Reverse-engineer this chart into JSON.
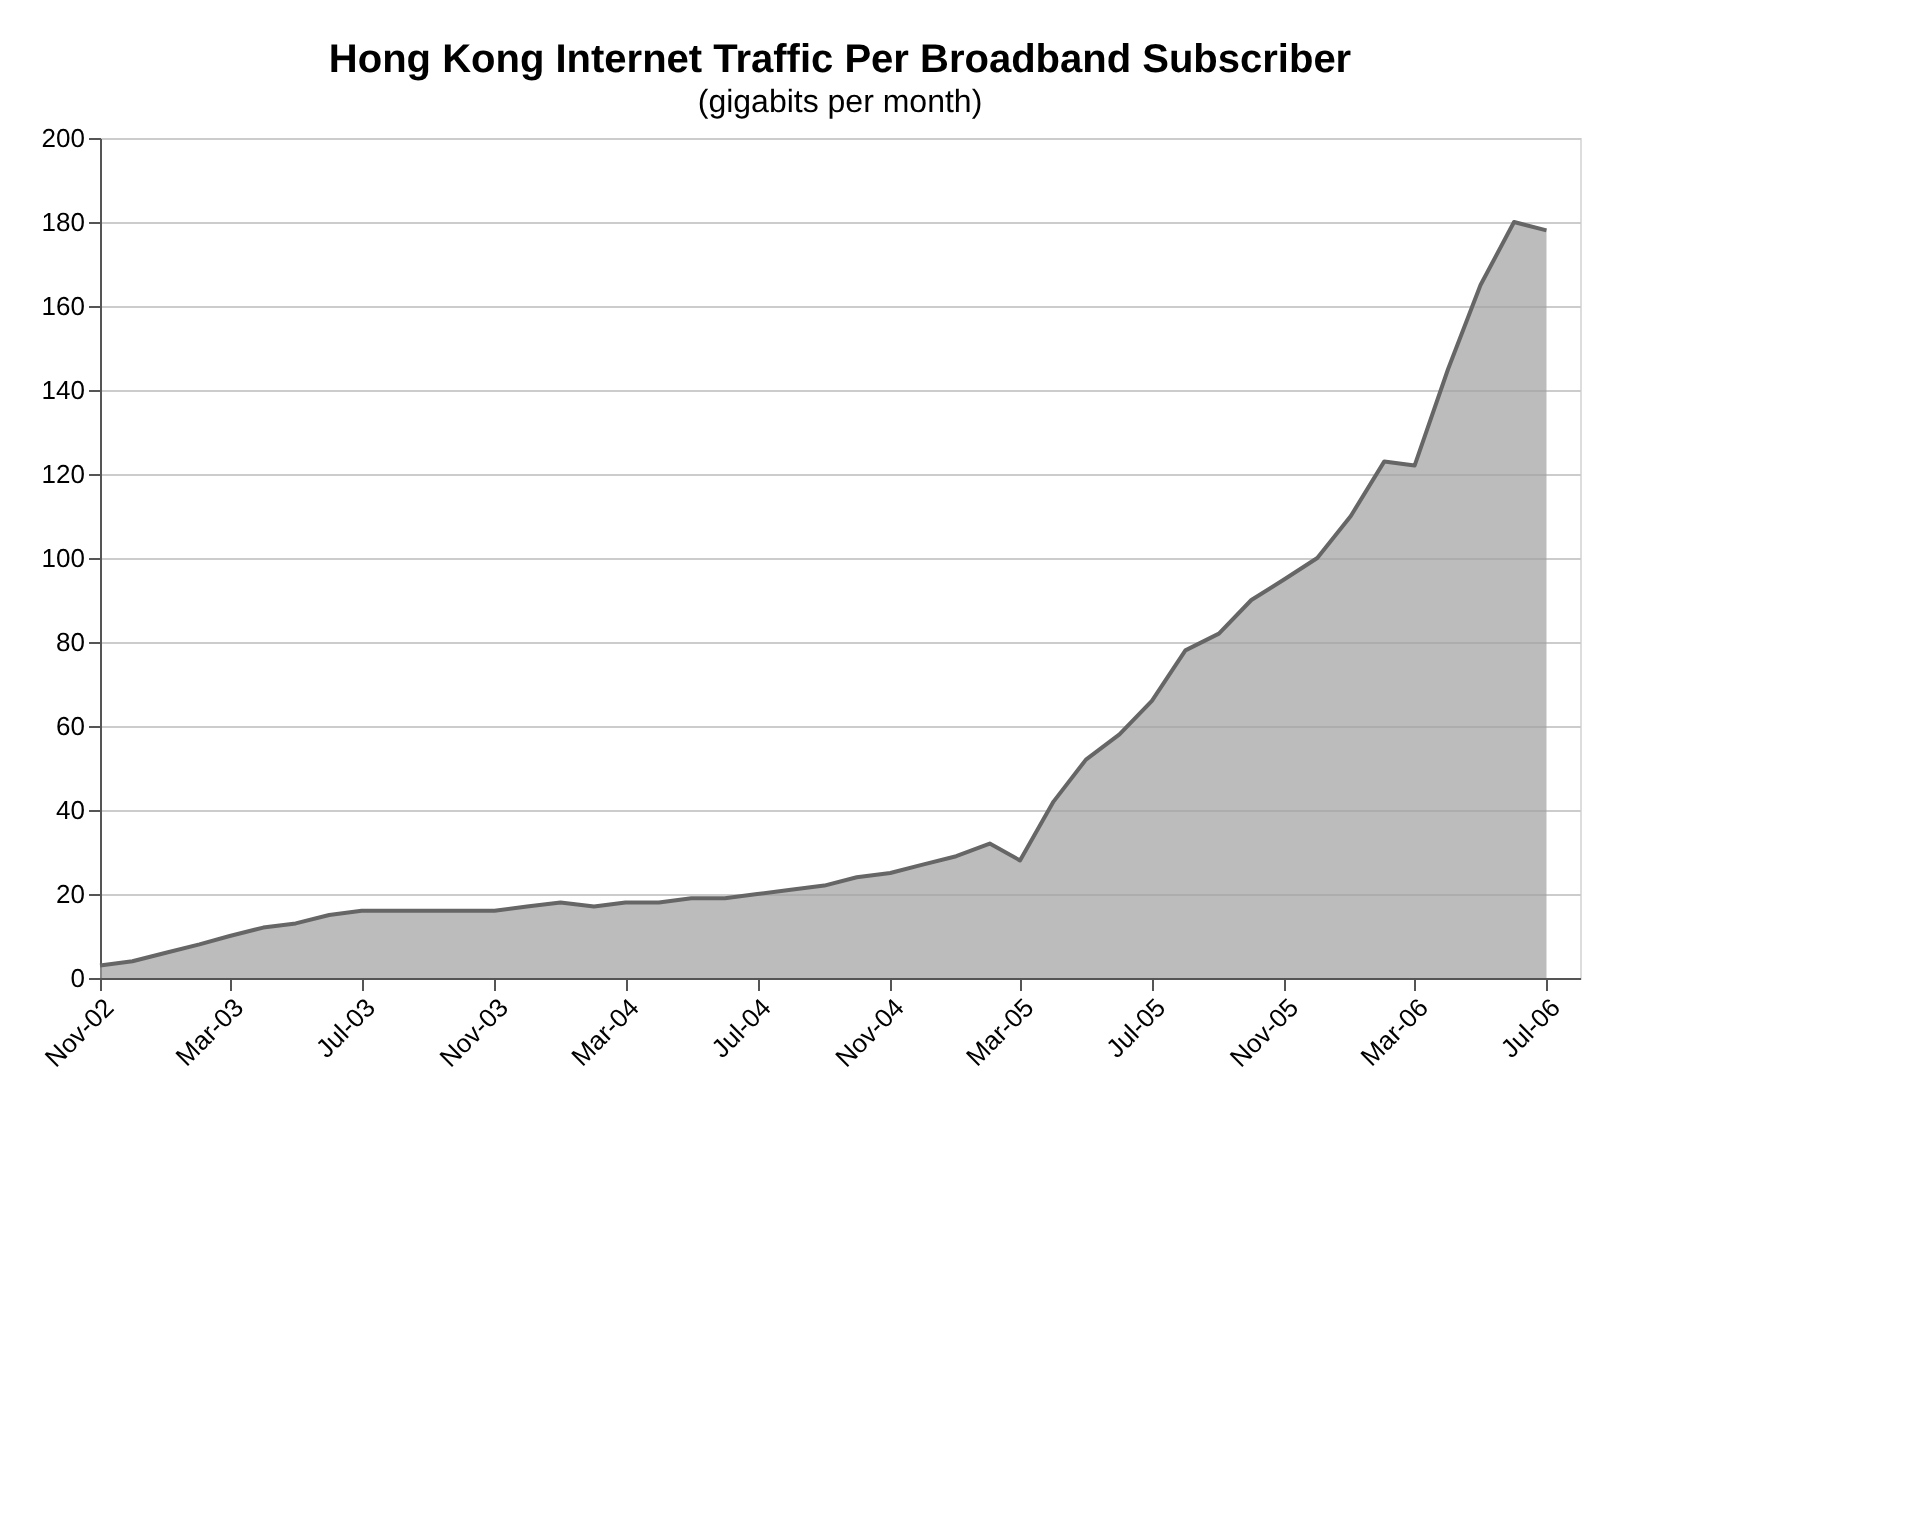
{
  "chart_data": {
    "type": "area",
    "title": "Hong Kong Internet Traffic Per Broadband Subscriber",
    "subtitle": "(gigabits per month)",
    "x": [
      "2002-11",
      "2002-12",
      "2003-01",
      "2003-02",
      "2003-03",
      "2003-04",
      "2003-05",
      "2003-06",
      "2003-07",
      "2003-08",
      "2003-09",
      "2003-10",
      "2003-11",
      "2003-12",
      "2004-01",
      "2004-02",
      "2004-03",
      "2004-04",
      "2004-05",
      "2004-06",
      "2004-07",
      "2004-08",
      "2004-09",
      "2004-10",
      "2004-11",
      "2004-12",
      "2005-01",
      "2005-02",
      "2005-03",
      "2005-04",
      "2005-05",
      "2005-06",
      "2005-07",
      "2005-08",
      "2005-09",
      "2005-10",
      "2005-11",
      "2005-12",
      "2006-01",
      "2006-02",
      "2006-03",
      "2006-04",
      "2006-05",
      "2006-06",
      "2006-07"
    ],
    "series": [
      {
        "color": "#a0a0a0",
        "values": [
          3,
          4,
          6,
          8,
          10,
          12,
          13,
          15,
          16,
          16,
          16,
          16,
          16,
          17,
          18,
          17,
          18,
          18,
          19,
          19,
          20,
          21,
          22,
          24,
          25,
          27,
          29,
          32,
          28,
          42,
          52,
          58,
          66,
          78,
          82,
          90,
          95,
          100,
          110,
          123,
          122,
          145,
          165,
          180,
          178
        ]
      }
    ],
    "xlim": [
      "2002-11",
      "2006-08"
    ],
    "xticks": [
      {
        "value": "2002-11",
        "label": "Nov-02"
      },
      {
        "value": "2003-03",
        "label": "Mar-03"
      },
      {
        "value": "2003-07",
        "label": "Jul-03"
      },
      {
        "value": "2003-11",
        "label": "Nov-03"
      },
      {
        "value": "2004-03",
        "label": "Mar-04"
      },
      {
        "value": "2004-07",
        "label": "Jul-04"
      },
      {
        "value": "2004-11",
        "label": "Nov-04"
      },
      {
        "value": "2005-03",
        "label": "Mar-05"
      },
      {
        "value": "2005-07",
        "label": "Jul-05"
      },
      {
        "value": "2005-11",
        "label": "Nov-05"
      },
      {
        "value": "2006-03",
        "label": "Mar-06"
      },
      {
        "value": "2006-07",
        "label": "Jul-06"
      }
    ],
    "ylim": [
      0,
      200
    ],
    "yticks": [
      0,
      20,
      40,
      60,
      80,
      100,
      120,
      140,
      160,
      180,
      200
    ],
    "grid": "y"
  }
}
